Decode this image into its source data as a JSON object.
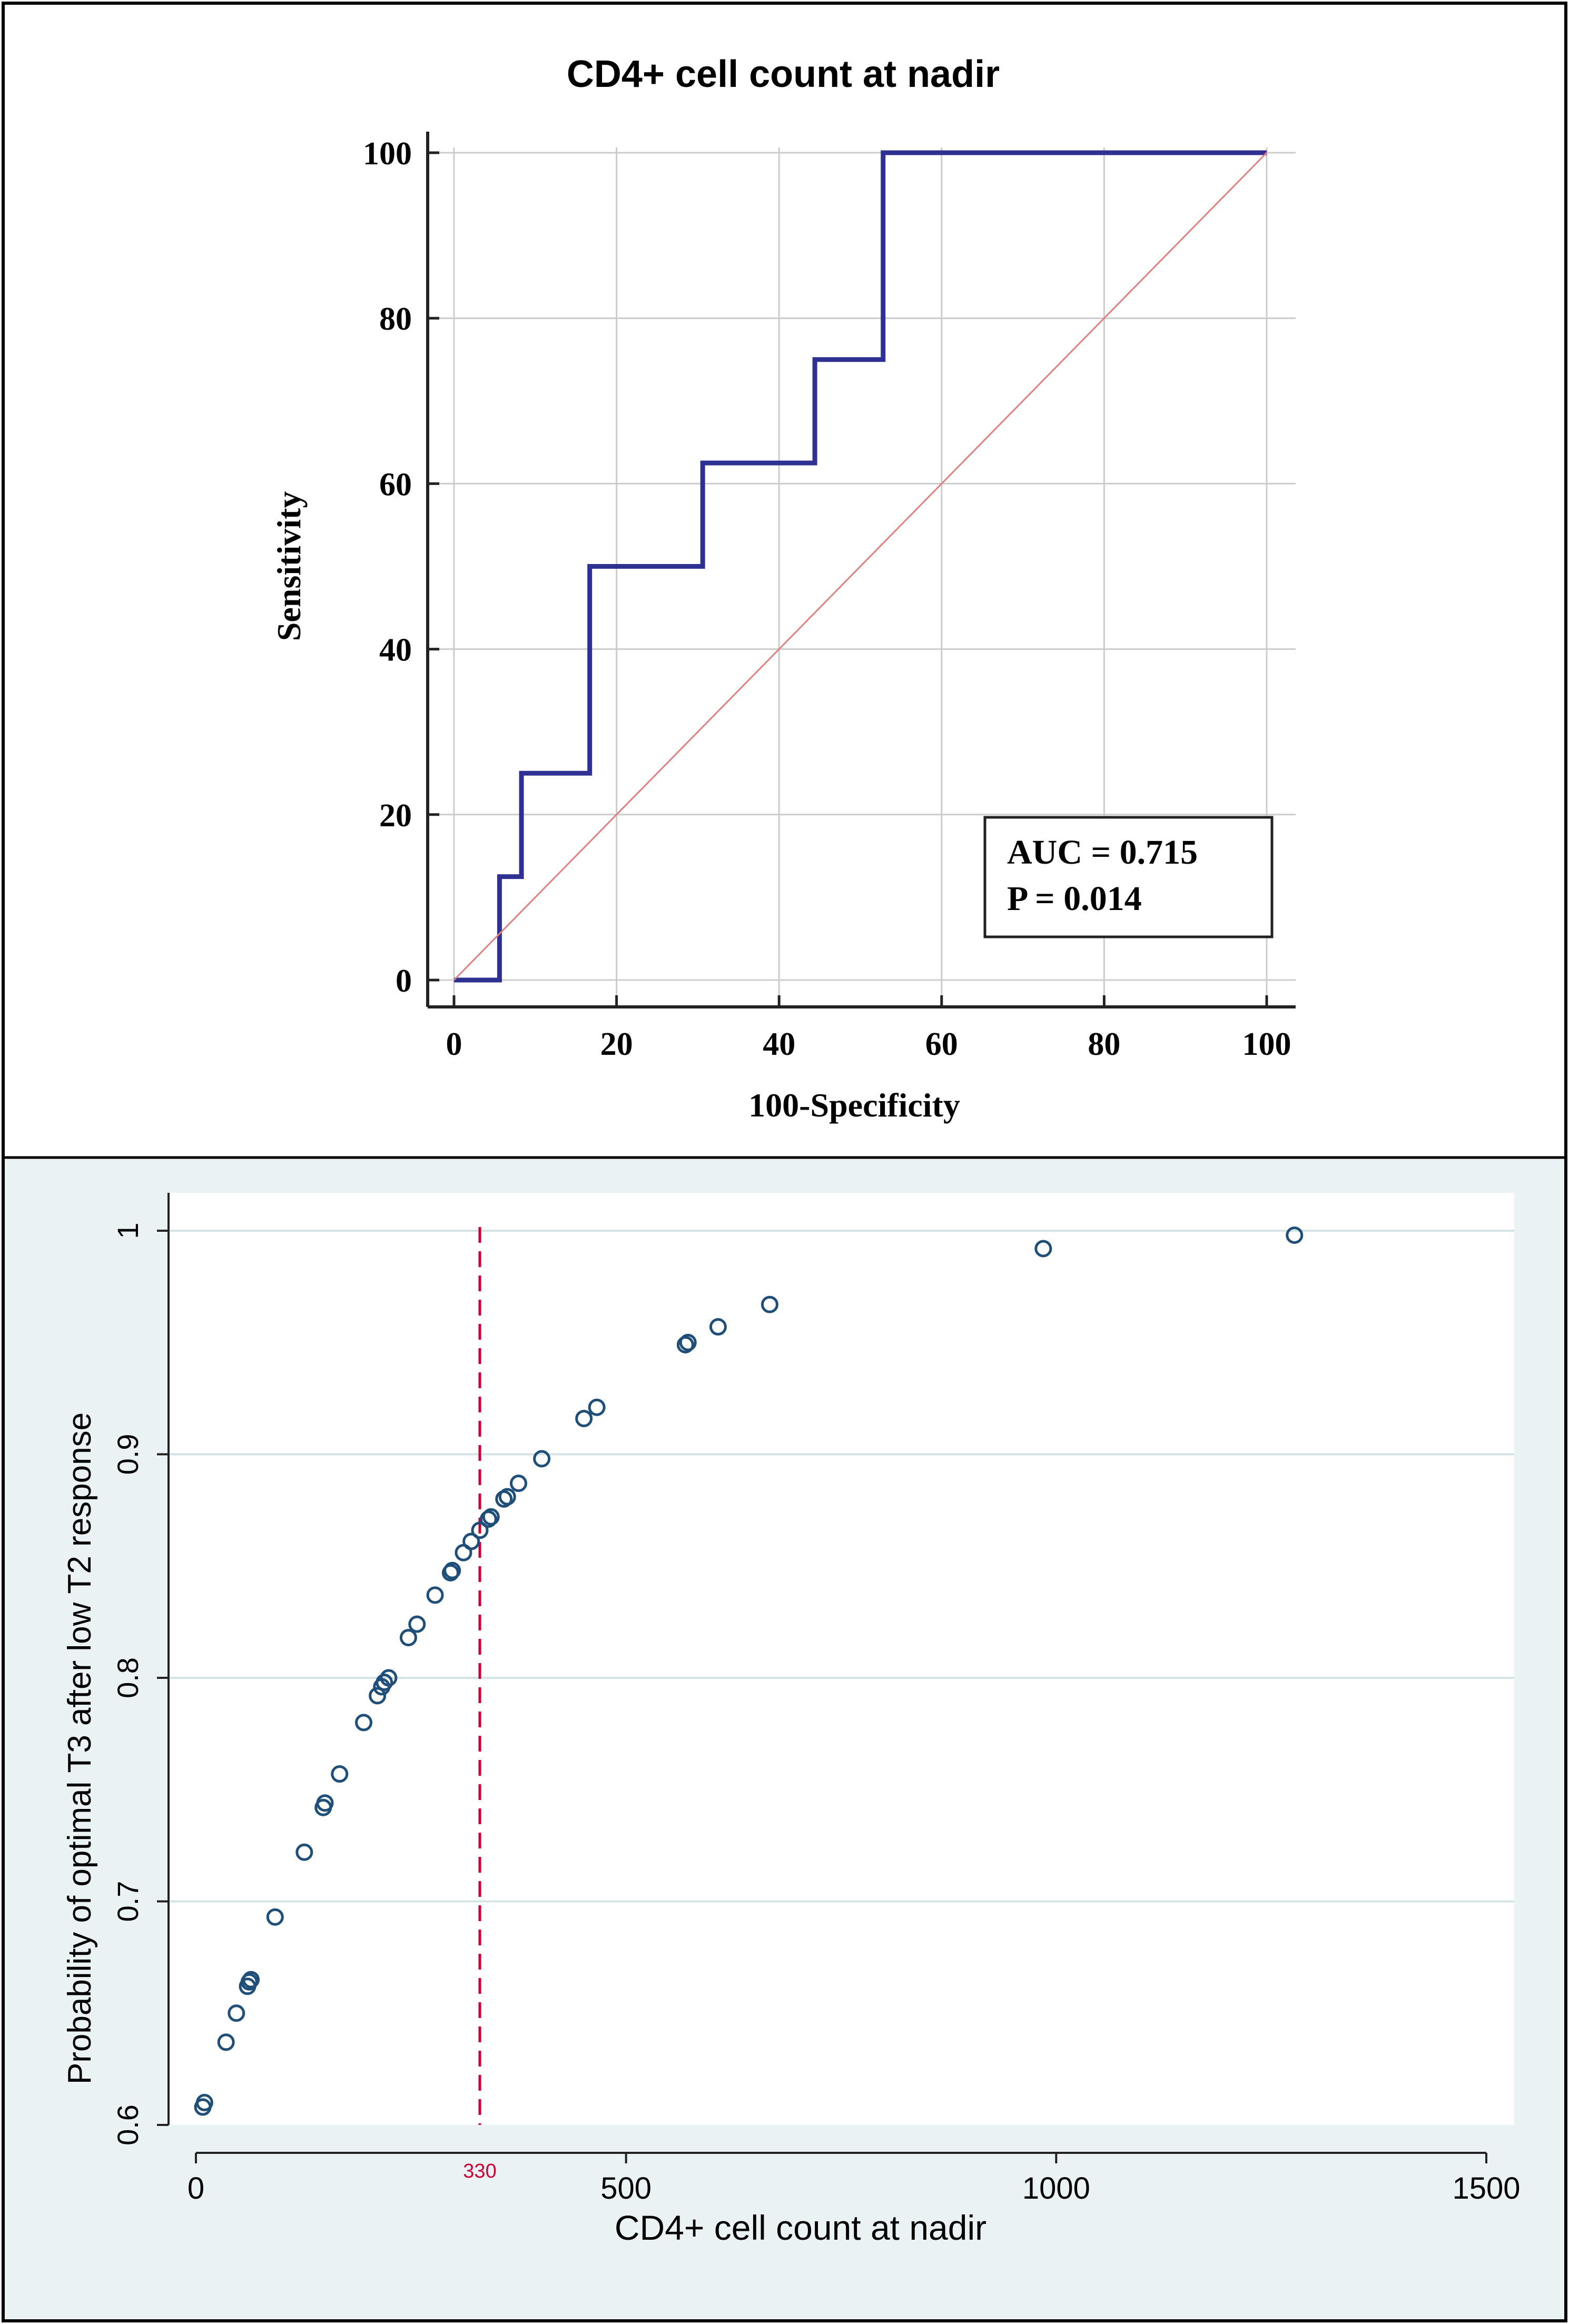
{
  "chart_data": [
    {
      "type": "line",
      "title": "CD4+ cell count at nadir",
      "xlabel": "100-Specificity",
      "ylabel": "Sensitivity",
      "xlim": [
        0,
        100
      ],
      "ylim": [
        0,
        100
      ],
      "xticks": [
        "0",
        "20",
        "40",
        "60",
        "80",
        "100"
      ],
      "yticks": [
        "0",
        "20",
        "40",
        "60",
        "80",
        "100"
      ],
      "grid": true,
      "series": [
        {
          "name": "ROC curve",
          "color": "#2e3192",
          "x": [
            0,
            5.6,
            5.6,
            8.3,
            8.3,
            16.7,
            16.7,
            30.6,
            30.6,
            44.4,
            44.4,
            52.8,
            52.8,
            100
          ],
          "y": [
            0,
            0,
            12.5,
            12.5,
            25,
            25,
            50,
            50,
            62.5,
            62.5,
            75,
            75,
            100,
            100
          ]
        },
        {
          "name": "Reference line",
          "color": "#e08080",
          "x": [
            0,
            100
          ],
          "y": [
            0,
            100
          ]
        }
      ],
      "annotations": [
        "AUC = 0.715",
        "P = 0.014"
      ]
    },
    {
      "type": "scatter",
      "title": "",
      "xlabel": "CD4+ cell count at  nadir",
      "ylabel": "Probability of optimal T3 after low T2 response",
      "xlim": [
        0,
        1500
      ],
      "ylim": [
        0.6,
        1.0
      ],
      "xticks": [
        "0",
        "500",
        "1000",
        "1500"
      ],
      "yticks": [
        "0.6",
        "0.7",
        "0.8",
        "0.9",
        "1"
      ],
      "grid": true,
      "reference_line": {
        "x": 330,
        "label": "330",
        "color": "#cc0033"
      },
      "background": "#eaf2f3",
      "marker_color": "#1f4e79",
      "points": [
        {
          "x": 8,
          "y": 0.608
        },
        {
          "x": 10,
          "y": 0.61
        },
        {
          "x": 35,
          "y": 0.637
        },
        {
          "x": 47,
          "y": 0.65
        },
        {
          "x": 60,
          "y": 0.662
        },
        {
          "x": 62,
          "y": 0.664
        },
        {
          "x": 64,
          "y": 0.665
        },
        {
          "x": 92,
          "y": 0.693
        },
        {
          "x": 126,
          "y": 0.722
        },
        {
          "x": 148,
          "y": 0.742
        },
        {
          "x": 150,
          "y": 0.744
        },
        {
          "x": 167,
          "y": 0.757
        },
        {
          "x": 195,
          "y": 0.78
        },
        {
          "x": 211,
          "y": 0.792
        },
        {
          "x": 216,
          "y": 0.796
        },
        {
          "x": 219,
          "y": 0.798
        },
        {
          "x": 224,
          "y": 0.8
        },
        {
          "x": 247,
          "y": 0.818
        },
        {
          "x": 257,
          "y": 0.824
        },
        {
          "x": 278,
          "y": 0.837
        },
        {
          "x": 296,
          "y": 0.847
        },
        {
          "x": 298,
          "y": 0.848
        },
        {
          "x": 311,
          "y": 0.856
        },
        {
          "x": 320,
          "y": 0.861
        },
        {
          "x": 330,
          "y": 0.866
        },
        {
          "x": 340,
          "y": 0.871
        },
        {
          "x": 343,
          "y": 0.872
        },
        {
          "x": 358,
          "y": 0.88
        },
        {
          "x": 362,
          "y": 0.881
        },
        {
          "x": 375,
          "y": 0.887
        },
        {
          "x": 402,
          "y": 0.898
        },
        {
          "x": 451,
          "y": 0.916
        },
        {
          "x": 466,
          "y": 0.921
        },
        {
          "x": 569,
          "y": 0.949
        },
        {
          "x": 572,
          "y": 0.95
        },
        {
          "x": 607,
          "y": 0.957
        },
        {
          "x": 667,
          "y": 0.967
        },
        {
          "x": 985,
          "y": 0.992
        },
        {
          "x": 1277,
          "y": 0.998
        }
      ]
    }
  ]
}
